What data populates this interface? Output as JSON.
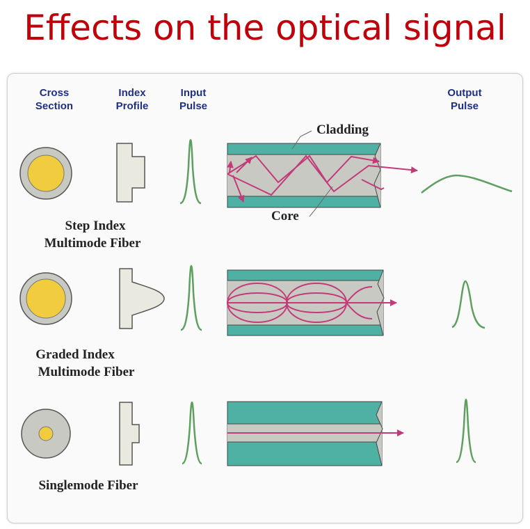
{
  "title": "Effects on the optical signal",
  "headers": {
    "cross_section": [
      "Cross",
      "Section"
    ],
    "index_profile": [
      "Index",
      "Profile"
    ],
    "input_pulse": [
      "Input",
      "Pulse"
    ],
    "output_pulse": [
      "Output",
      "Pulse"
    ]
  },
  "annotations": {
    "cladding": "Cladding",
    "core": "Core"
  },
  "fibers": [
    {
      "name_line1": "Step Index",
      "name_line2": "Multimode Fiber"
    },
    {
      "name_line1": "Graded Index",
      "name_line2": "Multimode Fiber"
    },
    {
      "name_line1": "Singlemode Fiber",
      "name_line2": ""
    }
  ],
  "colors": {
    "title": "#c0000a",
    "header": "#1f2f82",
    "cladding": "#4fb0a4",
    "core": "#c9c9c4",
    "ray": "#c23a77",
    "pulse": "#5f9f5f",
    "core_yellow": "#f0cc3e"
  }
}
